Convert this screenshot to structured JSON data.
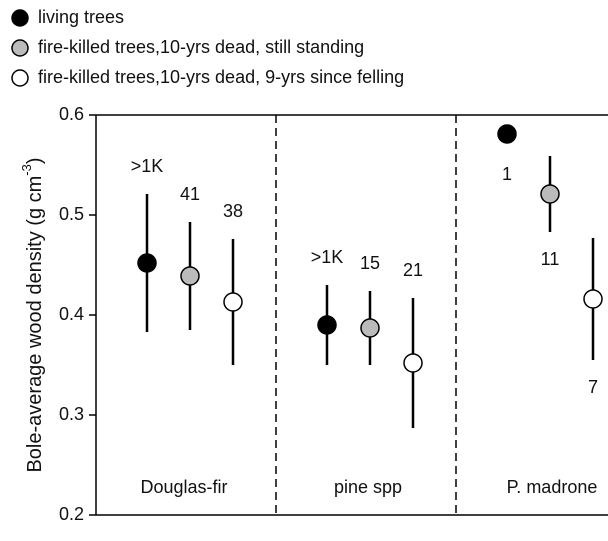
{
  "chart_data": {
    "type": "dot",
    "ylabel": "Bole-average wood density (g cm",
    "ylabel_sup": "-3",
    "ylabel_end": ")",
    "categories": [
      "Douglas-fir",
      "pine spp",
      "P. madrone"
    ],
    "series": [
      {
        "name": "living trees",
        "color": "#000000",
        "values": [
          0.452,
          0.39,
          0.581
        ],
        "errors": [
          0.069,
          0.04,
          null
        ],
        "labels": [
          ">1K",
          ">1K",
          "1"
        ]
      },
      {
        "name": "fire-killed trees,10-yrs dead, still standing",
        "color": "#bbbbbb",
        "values": [
          0.439,
          0.387,
          0.521
        ],
        "errors": [
          0.054,
          0.037,
          0.038
        ],
        "labels": [
          "41",
          "15",
          "11"
        ]
      },
      {
        "name": "fire-killed trees,10-yrs dead, 9-yrs since felling",
        "color": "#ffffff",
        "values": [
          0.413,
          0.352,
          0.416
        ],
        "errors": [
          0.063,
          0.065,
          0.061
        ],
        "labels": [
          "38",
          "21",
          "7"
        ]
      }
    ],
    "ylim": [
      0.2,
      0.6
    ],
    "yticks": [
      0.2,
      0.3,
      0.4,
      0.5,
      0.6
    ]
  }
}
